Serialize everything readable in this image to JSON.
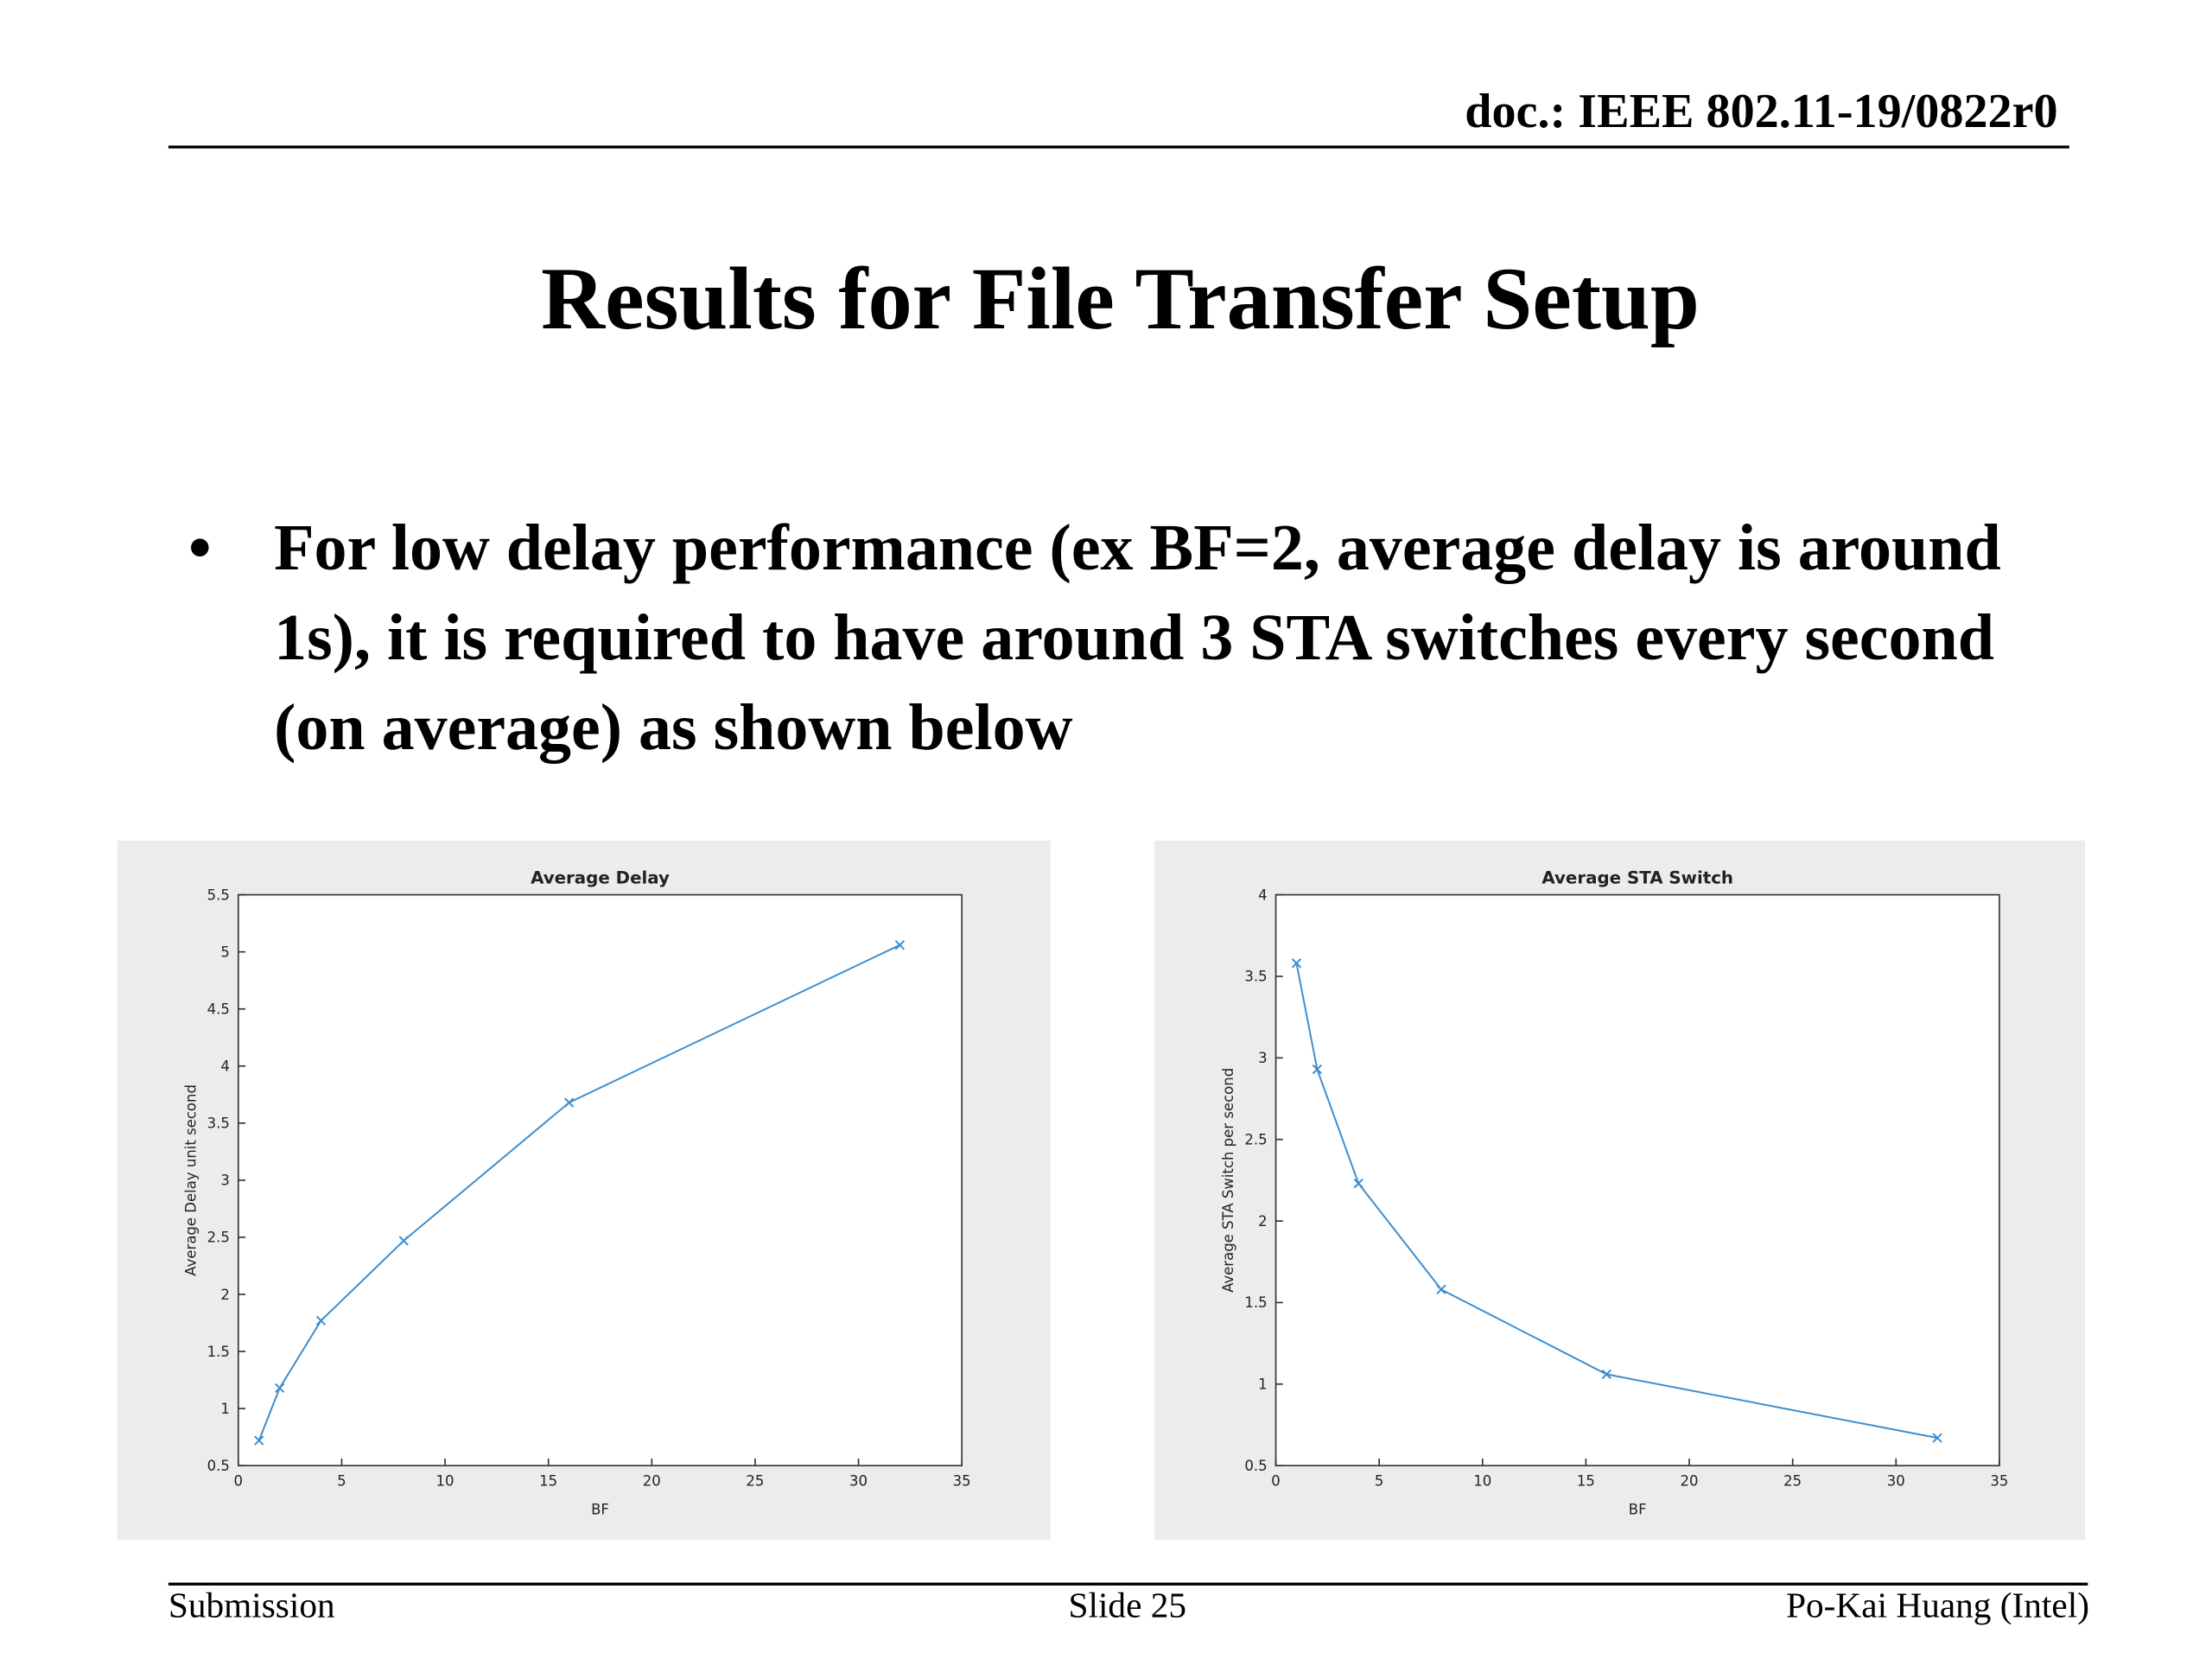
{
  "header": {
    "doc": "doc.: IEEE 802.11-19/0822r0"
  },
  "title": "Results for File Transfer Setup",
  "bullets": [
    "For low delay performance (ex BF=2, average delay is around 1s), it is required to have around 3 STA switches every second (on average) as shown below"
  ],
  "chart_data": [
    {
      "type": "line",
      "title": "Average Delay",
      "x_label": "BF",
      "y_label": "Average Delay unit second",
      "x": [
        1,
        2,
        4,
        8,
        16,
        32
      ],
      "series": [
        {
          "color": "#3b8ed0",
          "values": [
            0.72,
            1.18,
            1.77,
            2.47,
            3.68,
            5.06
          ]
        }
      ],
      "xlim": [
        0,
        35
      ],
      "xticks": [
        0,
        5,
        10,
        15,
        20,
        25,
        30,
        35
      ],
      "ylim": [
        0.5,
        5.5
      ],
      "yticks": [
        0.5,
        1,
        1.5,
        2,
        2.5,
        3,
        3.5,
        4,
        4.5,
        5,
        5.5
      ],
      "marker": "x"
    },
    {
      "type": "line",
      "title": "Average STA Switch",
      "x_label": "BF",
      "y_label": "Average STA Switch per second",
      "x": [
        1,
        2,
        4,
        8,
        16,
        32
      ],
      "series": [
        {
          "color": "#3b8ed0",
          "values": [
            3.58,
            2.93,
            2.23,
            1.58,
            1.06,
            0.67
          ]
        }
      ],
      "xlim": [
        0,
        35
      ],
      "xticks": [
        0,
        5,
        10,
        15,
        20,
        25,
        30,
        35
      ],
      "ylim": [
        0.5,
        4
      ],
      "yticks": [
        0.5,
        1,
        1.5,
        2,
        2.5,
        3,
        3.5,
        4
      ],
      "marker": "x"
    }
  ],
  "footer": {
    "left": "Submission",
    "center": "Slide 25",
    "right": "Po-Kai Huang (Intel)"
  }
}
